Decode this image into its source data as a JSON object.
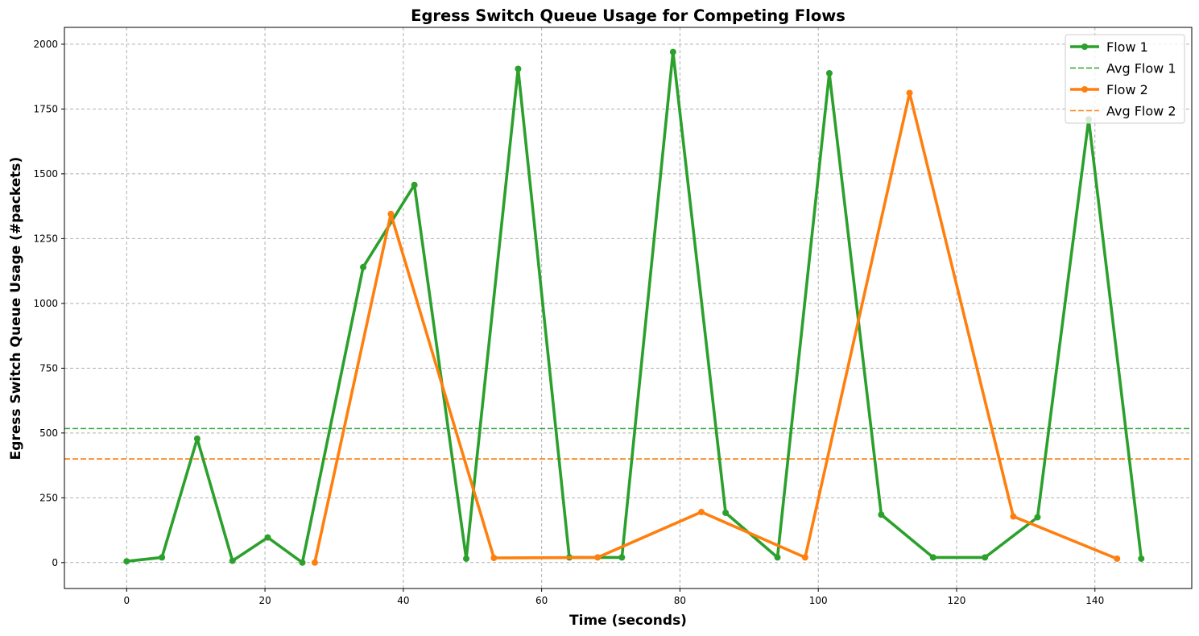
{
  "chart_data": {
    "type": "line",
    "title": "Egress Switch Queue Usage for Competing Flows",
    "xlabel": "Time (seconds)",
    "ylabel": "Egress Switch Queue Usage (#packets)",
    "xlim": [
      -9,
      154
    ],
    "ylim": [
      -100,
      2065
    ],
    "xticks": [
      0,
      20,
      40,
      60,
      80,
      100,
      120,
      140
    ],
    "yticks": [
      0,
      250,
      500,
      750,
      1000,
      1250,
      1500,
      1750,
      2000
    ],
    "grid": true,
    "legend_position": "top-right",
    "series": [
      {
        "name": "Flow 1",
        "color": "#2ca02c",
        "x": [
          0,
          5.1,
          10.2,
          15.3,
          20.4,
          25.4,
          34.2,
          41.6,
          49.1,
          56.6,
          64.0,
          71.6,
          79.0,
          86.6,
          94.1,
          101.6,
          109.1,
          116.6,
          124.1,
          131.7,
          139.1,
          146.7
        ],
        "y": [
          5,
          20,
          478,
          7,
          97,
          0,
          1140,
          1457,
          15,
          1905,
          20,
          20,
          1970,
          192,
          20,
          1888,
          185,
          20,
          20,
          175,
          1710,
          15
        ]
      },
      {
        "name": "Flow 2",
        "color": "#ff7f0e",
        "x": [
          27.2,
          38.2,
          53.1,
          68.1,
          83.1,
          98.1,
          113.2,
          128.2,
          143.2
        ],
        "y": [
          0,
          1345,
          18,
          20,
          195,
          20,
          1812,
          178,
          15
        ]
      }
    ],
    "averages": [
      {
        "name": "Avg Flow 1",
        "color": "#2ca02c",
        "y": 517
      },
      {
        "name": "Avg Flow 2",
        "color": "#ff7f0e",
        "y": 400
      }
    ]
  }
}
